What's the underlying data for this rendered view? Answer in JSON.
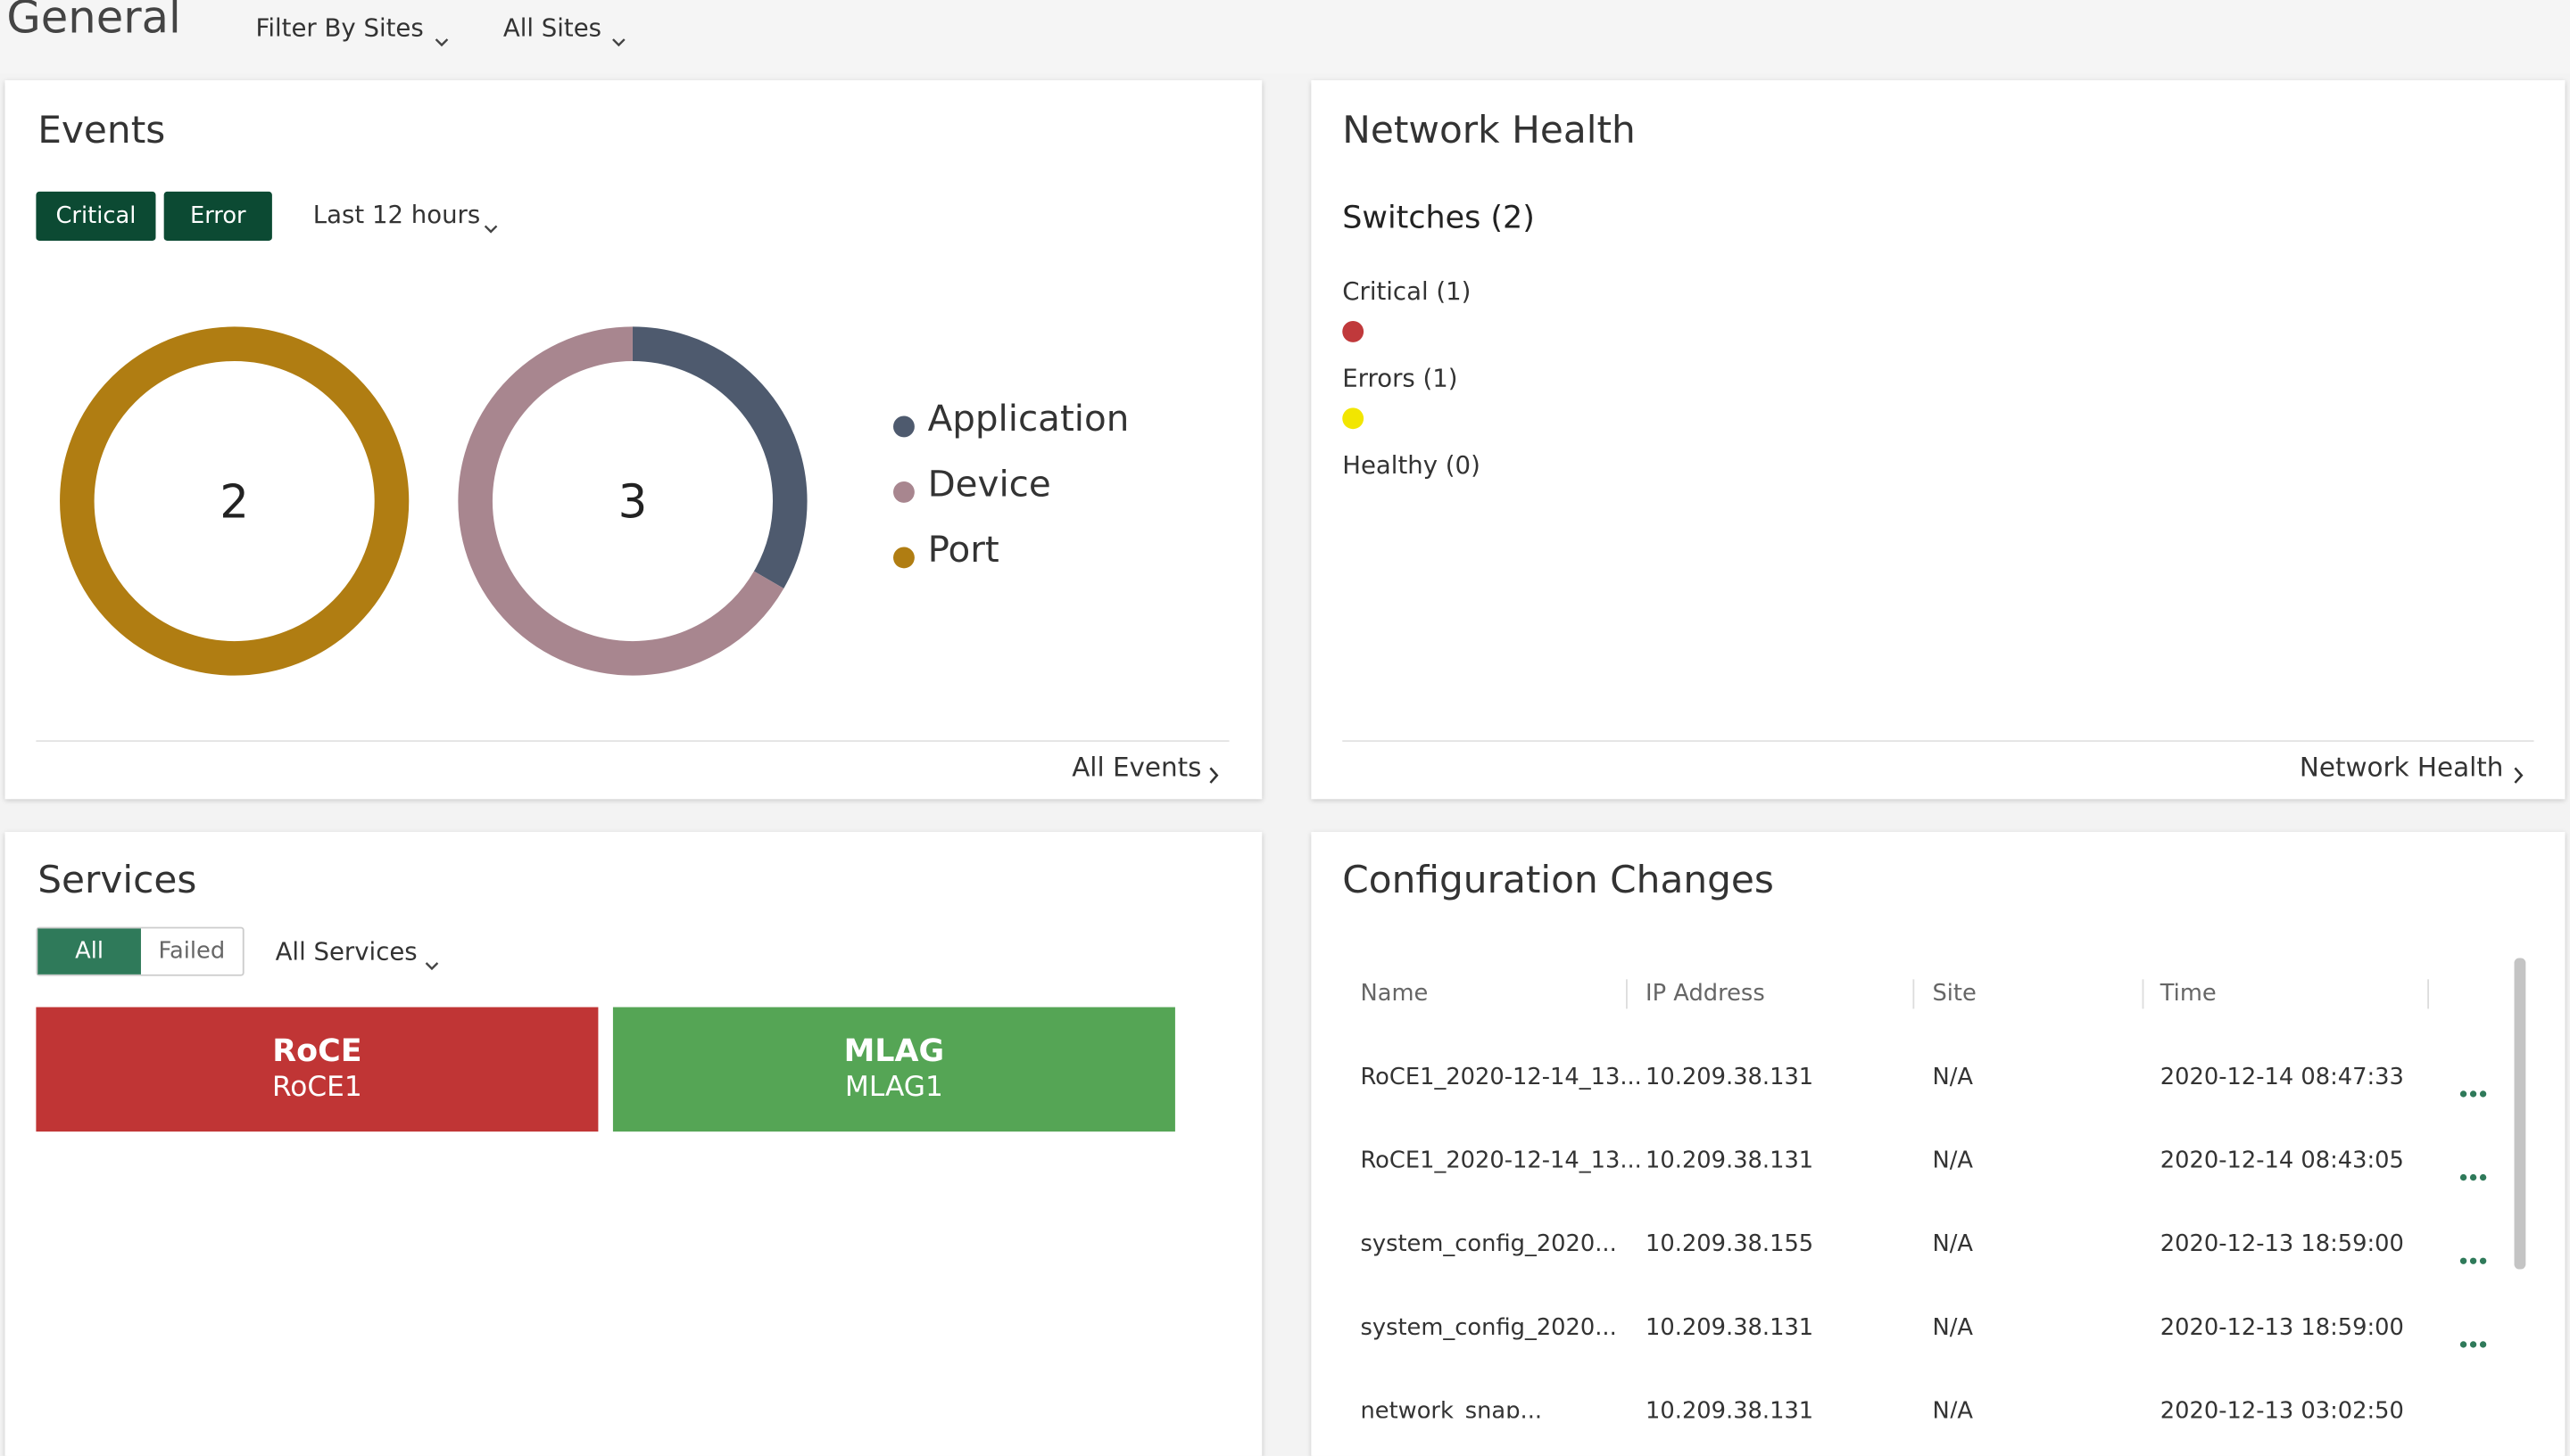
{
  "header": {
    "title": "General",
    "filter": "Filter By Sites",
    "sites": "All Sites"
  },
  "events": {
    "title": "Events",
    "buttons": [
      "Critical",
      "Error"
    ],
    "range": "Last 12 hours",
    "charts": [
      {
        "total": 2,
        "segments": [
          {
            "name": "Port",
            "value": 2,
            "color": "#b07d12"
          }
        ]
      },
      {
        "total": 3,
        "segments": [
          {
            "name": "Application",
            "value": 1,
            "color": "#4e5a6e"
          },
          {
            "name": "Device",
            "value": 2,
            "color": "#a8868f"
          }
        ]
      }
    ],
    "legend": [
      {
        "name": "Application",
        "color": "#4e5a6e"
      },
      {
        "name": "Device",
        "color": "#a8868f"
      },
      {
        "name": "Port",
        "color": "#b07d12"
      }
    ],
    "link": "All Events"
  },
  "network_health": {
    "title": "Network Health",
    "subtitle": "Switches (2)",
    "items": [
      {
        "label": "Critical (1)",
        "color": "#c0393b"
      },
      {
        "label": "Errors (1)",
        "color": "#f2e600"
      },
      {
        "label": "Healthy (0)",
        "color": null
      }
    ],
    "link": "Network Health"
  },
  "services": {
    "title": "Services",
    "tabs": [
      "All",
      "Failed"
    ],
    "filter": "All Services",
    "tiles": [
      {
        "name": "RoCE",
        "instance": "RoCE1",
        "color": "#c03535"
      },
      {
        "name": "MLAG",
        "instance": "MLAG1",
        "color": "#55a555"
      }
    ]
  },
  "config_changes": {
    "title": "Configuration Changes",
    "columns": [
      "Name",
      "IP Address",
      "Site",
      "Time"
    ],
    "rows": [
      [
        "RoCE1_2020-12-14_13...",
        "10.209.38.131",
        "N/A",
        "2020-12-14 08:47:33"
      ],
      [
        "RoCE1_2020-12-14_13...",
        "10.209.38.131",
        "N/A",
        "2020-12-14 08:43:05"
      ],
      [
        "system_config_2020...",
        "10.209.38.155",
        "N/A",
        "2020-12-13 18:59:00"
      ],
      [
        "system_config_2020...",
        "10.209.38.131",
        "N/A",
        "2020-12-13 18:59:00"
      ],
      [
        "network_snap...",
        "10.209.38.131",
        "N/A",
        "2020-12-13 03:02:50"
      ]
    ]
  }
}
